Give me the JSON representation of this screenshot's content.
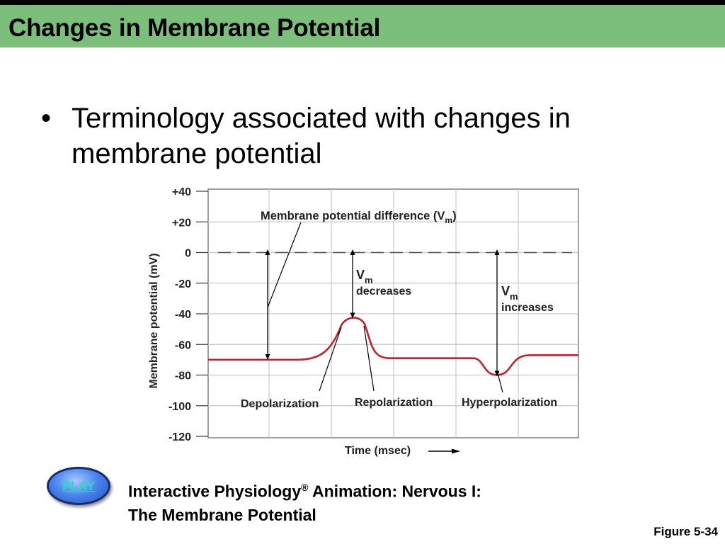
{
  "slide": {
    "title": "Changes in Membrane Potential",
    "bullet_symbol": "•",
    "bullet_text": "Terminology associated with changes in membrane potential",
    "figure_number": "Figure 5-34"
  },
  "diagram": {
    "y_axis_label": "Membrane potential (mV)",
    "y_ticks": [
      "+40",
      "+20",
      "0",
      "-20",
      "-40",
      "-60",
      "-80",
      "-100",
      "-120"
    ],
    "y_range": [
      -120,
      40
    ],
    "x_axis_label": "Time (msec)",
    "annotations": {
      "vm_difference": "Membrane potential difference (V",
      "vm_difference_sub": "m",
      "vm_difference_close": ")",
      "vm_decreases_v": "V",
      "vm_decreases_sub": "m",
      "vm_decreases_text": "decreases",
      "vm_increases_v": "V",
      "vm_increases_sub": "m",
      "vm_increases_text": "increases",
      "depolarization": "Depolarization",
      "repolarization": "Repolarization",
      "hyperpolarization": "Hyperpolarization"
    },
    "trace_color": "#c8202a",
    "resting_potential_mv": -70,
    "peak_mv": -42,
    "after_repolarization_mv": -69,
    "hyperpolarization_min_mv": -80,
    "final_mv": -67
  },
  "animation": {
    "play_label": "PLAY",
    "prefix": "Interactive Physiology",
    "reg": "®",
    "suffix": " Animation: Nervous I:",
    "line2": "The Membrane Potential"
  }
}
